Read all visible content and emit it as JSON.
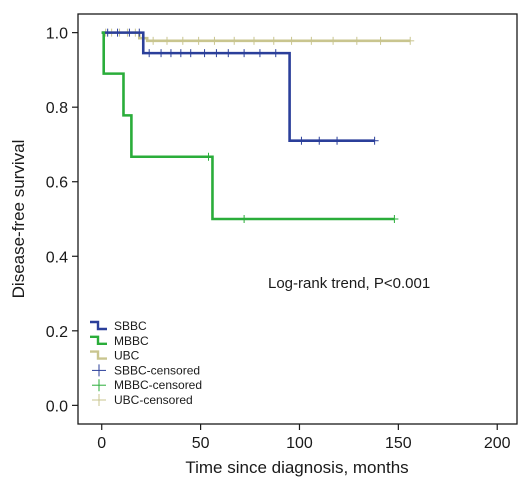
{
  "chart_data": {
    "type": "line",
    "title": "",
    "xlabel": "Time since diagnosis, months",
    "ylabel": "Disease-free survival",
    "xlim": [
      -12,
      210
    ],
    "ylim": [
      -0.05,
      1.05
    ],
    "x_ticks": [
      0,
      50,
      100,
      150,
      200
    ],
    "y_ticks": [
      0.0,
      0.2,
      0.4,
      0.6,
      0.8,
      1.0
    ],
    "x_tick_labels": [
      "0",
      "50",
      "100",
      "150",
      "200"
    ],
    "y_tick_labels": [
      "0.0",
      "0.2",
      "0.4",
      "0.6",
      "0.8",
      "1.0"
    ],
    "grid": false,
    "legend_position": "bottom-left",
    "annotation": "Log-rank trend, P<0.001",
    "series": [
      {
        "name": "SBBC",
        "color": "#2b3f9a",
        "steps": [
          [
            0,
            1.0
          ],
          [
            21,
            0.945
          ],
          [
            95,
            0.71
          ],
          [
            138,
            0.71
          ]
        ],
        "censored": [
          [
            3,
            1.0
          ],
          [
            8,
            1.0
          ],
          [
            14,
            1.0
          ],
          [
            19,
            1.0
          ],
          [
            24,
            0.945
          ],
          [
            30,
            0.945
          ],
          [
            35,
            0.945
          ],
          [
            40,
            0.945
          ],
          [
            45,
            0.945
          ],
          [
            52,
            0.945
          ],
          [
            58,
            0.945
          ],
          [
            64,
            0.945
          ],
          [
            72,
            0.945
          ],
          [
            80,
            0.945
          ],
          [
            88,
            0.945
          ],
          [
            101,
            0.71
          ],
          [
            110,
            0.71
          ],
          [
            119,
            0.71
          ],
          [
            138,
            0.71
          ]
        ]
      },
      {
        "name": "MBBC",
        "color": "#2aad3a",
        "steps": [
          [
            0,
            1.0
          ],
          [
            1,
            0.89
          ],
          [
            11,
            0.778
          ],
          [
            15,
            0.667
          ],
          [
            56,
            0.5
          ],
          [
            148,
            0.5
          ]
        ],
        "censored": [
          [
            54,
            0.667
          ],
          [
            72,
            0.5
          ],
          [
            148,
            0.5
          ]
        ]
      },
      {
        "name": "UBC",
        "color": "#c9c58f",
        "steps": [
          [
            0,
            1.0
          ],
          [
            19,
            0.985
          ],
          [
            23,
            0.978
          ],
          [
            156,
            0.978
          ]
        ],
        "censored": [
          [
            2,
            1.0
          ],
          [
            5,
            1.0
          ],
          [
            9,
            1.0
          ],
          [
            13,
            1.0
          ],
          [
            17,
            1.0
          ],
          [
            26,
            0.978
          ],
          [
            33,
            0.978
          ],
          [
            41,
            0.978
          ],
          [
            49,
            0.978
          ],
          [
            57,
            0.978
          ],
          [
            67,
            0.978
          ],
          [
            77,
            0.978
          ],
          [
            87,
            0.978
          ],
          [
            96,
            0.978
          ],
          [
            106,
            0.978
          ],
          [
            117,
            0.978
          ],
          [
            129,
            0.978
          ],
          [
            141,
            0.978
          ],
          [
            156,
            0.978
          ]
        ]
      }
    ],
    "legend": [
      {
        "label": "SBBC",
        "color": "#2b3f9a",
        "kind": "line"
      },
      {
        "label": "MBBC",
        "color": "#2aad3a",
        "kind": "line"
      },
      {
        "label": "UBC",
        "color": "#c9c58f",
        "kind": "line"
      },
      {
        "label": "SBBC-censored",
        "color": "#2b3f9a",
        "kind": "cross"
      },
      {
        "label": "MBBC-censored",
        "color": "#2aad3a",
        "kind": "cross"
      },
      {
        "label": "UBC-censored",
        "color": "#c9c58f",
        "kind": "cross"
      }
    ]
  }
}
